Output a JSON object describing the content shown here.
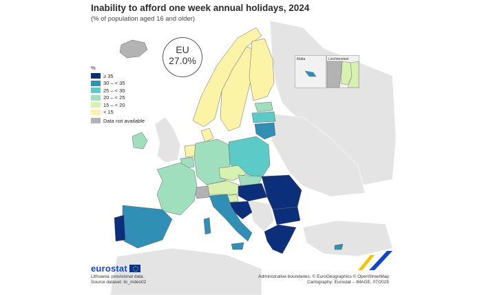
{
  "title": "Inability to afford one week annual holidays, 2024",
  "subtitle": "(% of population aged 16 and older)",
  "eu_badge": {
    "label": "EU",
    "value": "27.0%"
  },
  "legend": {
    "unit": "%",
    "classes": [
      {
        "label": "≥ 35",
        "color": "#0b2f7a"
      },
      {
        "label": "30 – < 35",
        "color": "#2f8fb5"
      },
      {
        "label": "25 – < 30",
        "color": "#5ccbc8"
      },
      {
        "label": "20 – < 25",
        "color": "#9fdfbd"
      },
      {
        "label": "15 – < 20",
        "color": "#d8f0b0"
      },
      {
        "label": "< 15",
        "color": "#fbf3a6"
      }
    ],
    "na": {
      "label": "Data not available",
      "color": "#b3b3b3"
    }
  },
  "insets": {
    "malta": "Malta",
    "liechtenstein": "Liechtenstein"
  },
  "footer": {
    "logo": "eurostat",
    "note1": "Lithuania: provisional data.",
    "note2": "Source dataset: ilc_mdes02",
    "credit1": "Administrative boundaries: © EuroGeographics © OpenStreetMap",
    "credit2": "Cartography: Eurostat – IMAGE, 07/2025"
  },
  "map_data": {
    "non_eu_color": "#e4e4e4",
    "sea_color": "#ffffff",
    "countries": [
      {
        "name": "Iceland",
        "class": "na"
      },
      {
        "name": "Ireland",
        "class": "20–<25"
      },
      {
        "name": "United Kingdom",
        "class": "non-eu"
      },
      {
        "name": "Norway",
        "class": "<15"
      },
      {
        "name": "Sweden",
        "class": "<15"
      },
      {
        "name": "Finland",
        "class": "<15"
      },
      {
        "name": "Estonia",
        "class": "20–<25"
      },
      {
        "name": "Latvia",
        "class": "25–<30"
      },
      {
        "name": "Lithuania",
        "class": "30–<35"
      },
      {
        "name": "Denmark",
        "class": "<15"
      },
      {
        "name": "Netherlands",
        "class": "<15"
      },
      {
        "name": "Belgium",
        "class": "20–<25"
      },
      {
        "name": "Luxembourg",
        "class": "<15"
      },
      {
        "name": "Germany",
        "class": "20–<25"
      },
      {
        "name": "Poland",
        "class": "25–<30"
      },
      {
        "name": "Czechia",
        "class": "15–<20"
      },
      {
        "name": "Slovakia",
        "class": "20–<25"
      },
      {
        "name": "Austria",
        "class": "15–<20"
      },
      {
        "name": "Switzerland",
        "class": "na"
      },
      {
        "name": "Slovenia",
        "class": "15–<20"
      },
      {
        "name": "Hungary",
        "class": "≥35"
      },
      {
        "name": "Romania",
        "class": "≥35"
      },
      {
        "name": "Bulgaria",
        "class": "≥35"
      },
      {
        "name": "Croatia",
        "class": "≥35"
      },
      {
        "name": "Greece",
        "class": "≥35"
      },
      {
        "name": "Cyprus",
        "class": "30–<35"
      },
      {
        "name": "Malta",
        "class": "30–<35"
      },
      {
        "name": "Italy",
        "class": "30–<35"
      },
      {
        "name": "France",
        "class": "20–<25"
      },
      {
        "name": "Spain",
        "class": "30–<35"
      },
      {
        "name": "Portugal",
        "class": "≥35"
      },
      {
        "name": "Serbia",
        "class": "non-eu"
      },
      {
        "name": "Liechtenstein",
        "class": "15–<20"
      }
    ]
  }
}
